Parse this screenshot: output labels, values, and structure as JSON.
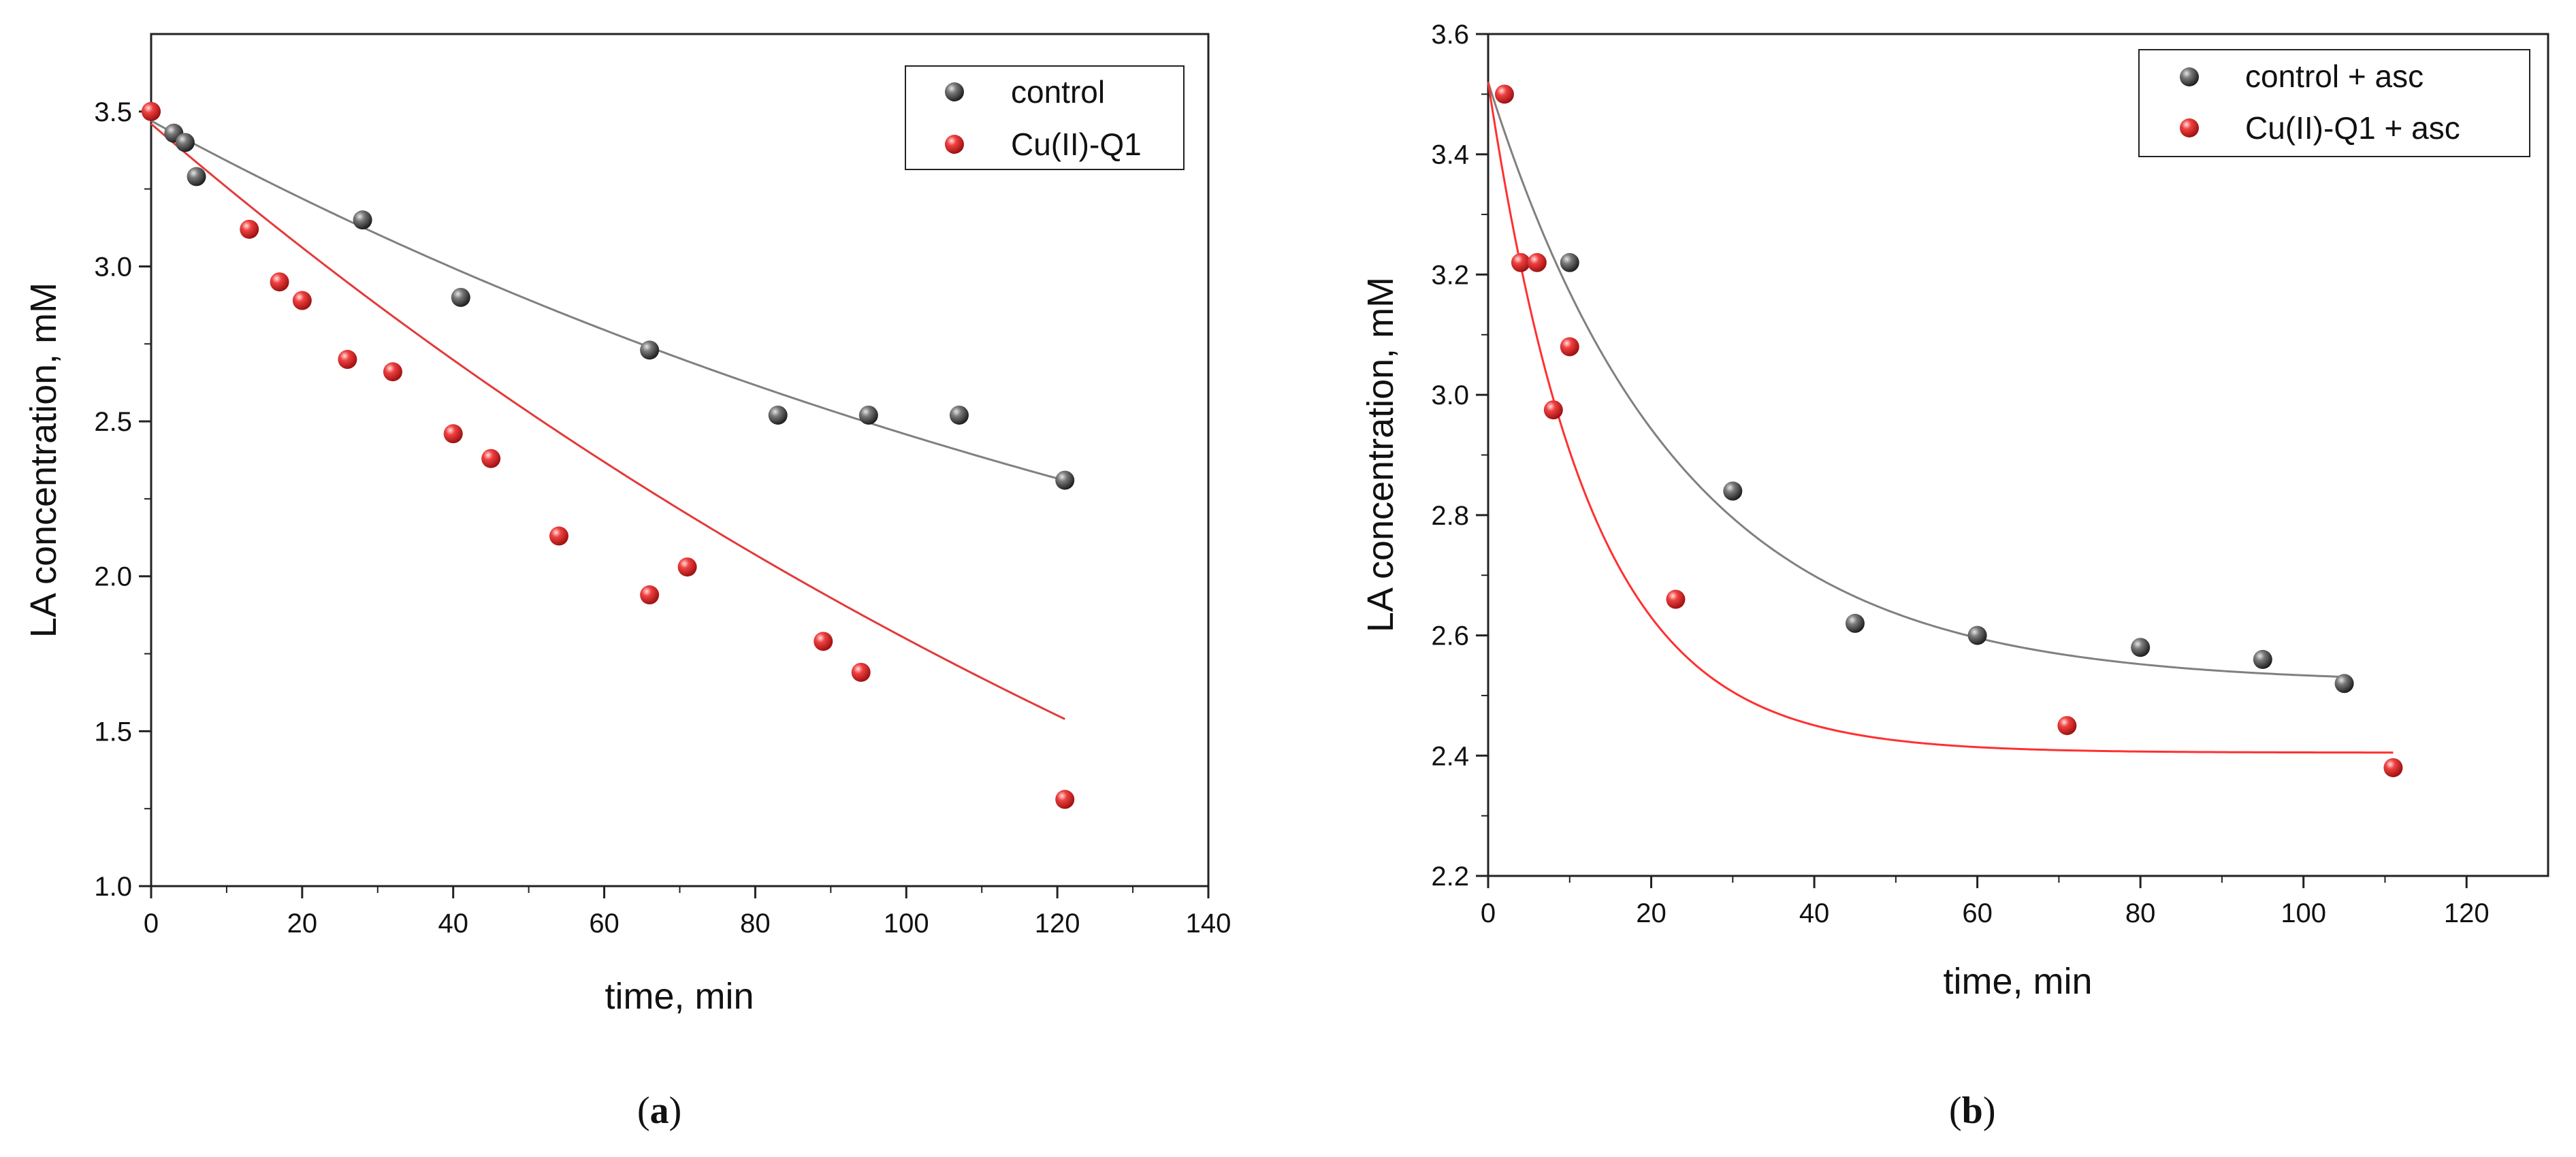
{
  "chart_data": [
    {
      "type": "scatter",
      "panel_label": "a",
      "xlabel": "time, min",
      "ylabel": "LA concentration, mM",
      "xlim": [
        0,
        140
      ],
      "ylim": [
        1.0,
        3.75
      ],
      "xticks": [
        0,
        20,
        40,
        60,
        80,
        100,
        120,
        140
      ],
      "yticks": [
        1.0,
        1.5,
        2.0,
        2.5,
        3.0,
        3.5
      ],
      "tick_labels_x": [
        "0",
        "20",
        "40",
        "60",
        "80",
        "100",
        "120",
        "140"
      ],
      "tick_labels_y": [
        "1.0",
        "1.5",
        "2.0",
        "2.5",
        "3.0",
        "3.5"
      ],
      "legend_position": "top-right",
      "series": [
        {
          "name": "control",
          "color": "#4a4a4a",
          "line_color": "#808080",
          "x": [
            0,
            3,
            4.5,
            6,
            28,
            41,
            66,
            83,
            95,
            107,
            121
          ],
          "y": [
            3.5,
            3.43,
            3.4,
            3.29,
            3.15,
            2.9,
            2.73,
            2.52,
            2.52,
            2.52,
            2.31
          ],
          "fit": {
            "model": "exp_decay",
            "y0": 1.14,
            "A": 2.33,
            "k": 0.0057,
            "x_from": 0,
            "x_to": 121
          }
        },
        {
          "name": "Cu(II)-Q1",
          "color": "#e8282d",
          "line_color": "#e33a3a",
          "x": [
            0,
            13,
            17,
            20,
            26,
            32,
            40,
            45,
            54,
            66,
            71,
            89,
            94,
            121
          ],
          "y": [
            3.5,
            3.12,
            2.95,
            2.89,
            2.7,
            2.66,
            2.46,
            2.38,
            2.13,
            1.94,
            2.03,
            1.79,
            1.69,
            1.28
          ],
          "fit": {
            "model": "exp_decay",
            "y0": -0.9,
            "A": 4.36,
            "k": 0.0048,
            "x_from": 0,
            "x_to": 121
          }
        }
      ]
    },
    {
      "type": "scatter",
      "panel_label": "b",
      "xlabel": "time, min",
      "ylabel": "LA concentration, mM",
      "xlim": [
        0,
        130
      ],
      "ylim": [
        2.2,
        3.6
      ],
      "xticks": [
        0,
        20,
        40,
        60,
        80,
        100,
        120
      ],
      "yticks": [
        2.2,
        2.4,
        2.6,
        2.8,
        3.0,
        3.2,
        3.4,
        3.6
      ],
      "tick_labels_x": [
        "0",
        "20",
        "40",
        "60",
        "80",
        "100",
        "120"
      ],
      "tick_labels_y": [
        "2.2",
        "2.4",
        "2.6",
        "2.8",
        "3.0",
        "3.2",
        "3.4",
        "3.6"
      ],
      "legend_position": "top-right",
      "series": [
        {
          "name": "control + asc",
          "color": "#4a4a4a",
          "line_color": "#808080",
          "x": [
            10,
            30,
            45,
            60,
            80,
            95,
            105
          ],
          "y": [
            3.22,
            2.84,
            2.62,
            2.6,
            2.58,
            2.56,
            2.52
          ],
          "fit": {
            "model": "exp_decay",
            "y0": 2.52,
            "A": 1.0,
            "k": 0.043,
            "x_from": 0,
            "x_to": 105
          }
        },
        {
          "name": "Cu(II)-Q1 + asc",
          "color": "#e8282d",
          "line_color": "#ff3030",
          "x": [
            2,
            4,
            6,
            8,
            10,
            23,
            71,
            111
          ],
          "y": [
            3.5,
            3.22,
            3.22,
            2.975,
            3.08,
            2.66,
            2.45,
            2.38
          ],
          "fit": {
            "model": "exp_decay",
            "y0": 2.405,
            "A": 1.115,
            "k": 0.08,
            "x_from": 0,
            "x_to": 111
          }
        }
      ]
    }
  ]
}
